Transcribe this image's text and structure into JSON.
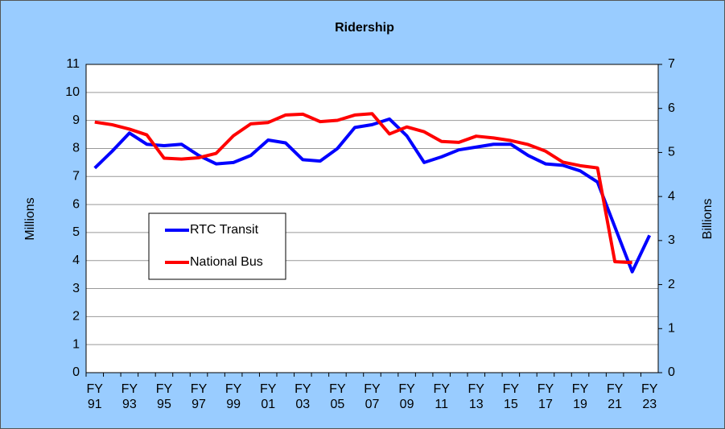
{
  "chart_data": {
    "type": "line",
    "title": "Ridership",
    "ylabel": "Millions",
    "y2label": "Billions",
    "categories": [
      "FY 91",
      null,
      "FY 93",
      null,
      "FY 95",
      null,
      "FY 97",
      null,
      "FY 99",
      null,
      "FY 01",
      null,
      "FY 03",
      null,
      "FY 05",
      null,
      "FY 07",
      null,
      "FY 09",
      null,
      "FY 11",
      null,
      "FY 13",
      null,
      "FY 15",
      null,
      "FY 17",
      null,
      "FY 19",
      null,
      "FY 21",
      null,
      "FY 23"
    ],
    "series": [
      {
        "name": "RTC Transit",
        "color": "#0000ff",
        "values": [
          7.3,
          7.9,
          8.55,
          8.15,
          8.1,
          8.15,
          7.75,
          7.45,
          7.5,
          7.75,
          8.3,
          8.2,
          7.6,
          7.55,
          8.0,
          8.75,
          8.85,
          9.05,
          8.45,
          7.5,
          7.7,
          7.95,
          8.05,
          8.15,
          8.15,
          7.75,
          7.45,
          7.4,
          7.2,
          6.8,
          5.2,
          3.6,
          4.9
        ]
      },
      {
        "name": "National Bus",
        "color": "#ff0000",
        "axis": "y2",
        "values": [
          5.69,
          5.63,
          5.53,
          5.4,
          4.87,
          4.85,
          4.88,
          4.98,
          5.38,
          5.65,
          5.68,
          5.85,
          5.87,
          5.7,
          5.73,
          5.85,
          5.88,
          5.42,
          5.58,
          5.47,
          5.25,
          5.23,
          5.37,
          5.33,
          5.27,
          5.18,
          5.03,
          4.78,
          4.7,
          4.65,
          2.52,
          2.5,
          null
        ]
      }
    ],
    "ylim": [
      0,
      11
    ],
    "yticks": [
      0,
      1,
      2,
      3,
      4,
      5,
      6,
      7,
      8,
      9,
      10,
      11
    ],
    "y2lim": [
      0,
      7
    ],
    "y2ticks": [
      0,
      1,
      2,
      3,
      4,
      5,
      6,
      7
    ],
    "grid": true
  }
}
